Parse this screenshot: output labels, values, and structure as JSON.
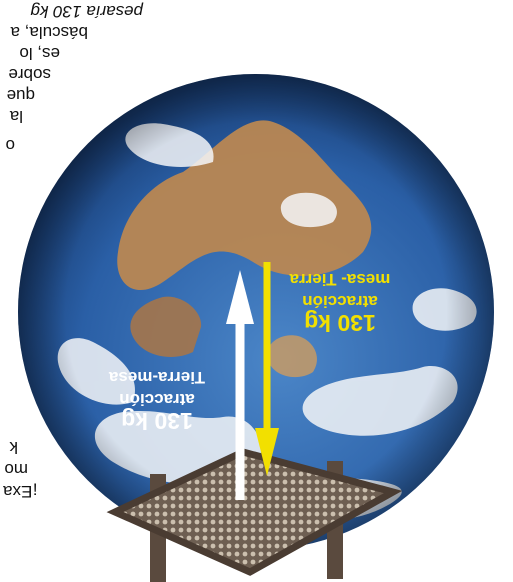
{
  "colors": {
    "background": "#ffffff",
    "ocean": "#2a5fa6",
    "land": "#b98752",
    "cloud": "#f4f6f8",
    "table_frame": "#5a4a3e",
    "table_mesh": "#8a7a6a",
    "arrow_white": "#ffffff",
    "arrow_yellow": "#f2e000",
    "label_white": "#ffffff",
    "label_yellow": "#f2e000"
  },
  "paragraph_right": {
    "lines": [
      "pesaría 130 kg",
      "báscula, a",
      "es, lo",
      "sobre",
      "que",
      "la",
      "o"
    ]
  },
  "paragraph_left": {
    "lines": [
      "¡Exa",
      "mo",
      "k"
    ]
  },
  "force_white": {
    "value": "130 kg",
    "line1": "atracción",
    "line2": "Tierra-mesa"
  },
  "force_yellow": {
    "value": "130 kg",
    "line1": "atracción",
    "line2": "mesa- Tierra"
  },
  "icons": {
    "earth": "earth-globe-icon",
    "table": "table-icon"
  }
}
